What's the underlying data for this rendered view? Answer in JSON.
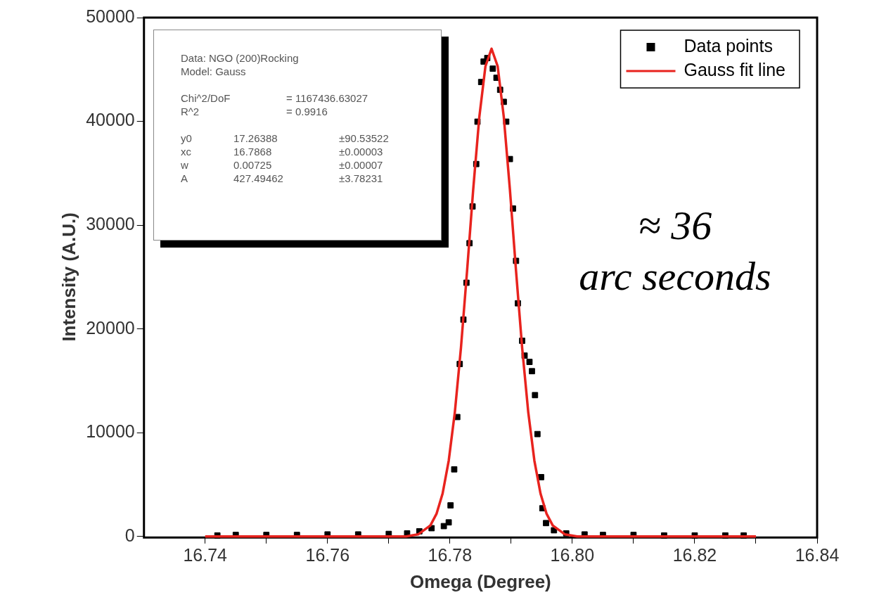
{
  "chart_data": {
    "type": "scatter",
    "xlabel": "Omega (Degree)",
    "ylabel": "Intensity (A.U.)",
    "xlim": [
      16.73,
      16.84
    ],
    "xticks": [
      16.74,
      {
        "value": 16.75,
        "label": null
      },
      16.76,
      {
        "value": 16.77,
        "label": null
      },
      16.78,
      {
        "value": 16.79,
        "label": null
      },
      {
        "value": 16.8,
        "label": "16.80"
      },
      {
        "value": 16.81,
        "label": null
      },
      16.82,
      {
        "value": 16.83,
        "label": null
      },
      16.84
    ],
    "ylim": [
      0,
      50000
    ],
    "yticks": [
      0,
      10000,
      20000,
      30000,
      40000,
      50000
    ],
    "grid": false,
    "legend": "top right",
    "series": [
      {
        "name": "Data points",
        "marker": "square",
        "color": "#000000",
        "x": [
          16.742,
          16.745,
          16.75,
          16.755,
          16.76,
          16.765,
          16.77,
          16.773,
          16.775,
          16.777,
          16.779,
          16.7798,
          16.7801,
          16.7807,
          16.7812,
          16.7816,
          16.7822,
          16.7827,
          16.7832,
          16.7837,
          16.7843,
          16.7845,
          16.7851,
          16.7855,
          16.7861,
          16.787,
          16.7876,
          16.7882,
          16.7888,
          16.7892,
          16.7898,
          16.7903,
          16.7908,
          16.7911,
          16.7918,
          16.7922,
          16.793,
          16.7934,
          16.7939,
          16.7943,
          16.7949,
          16.7951,
          16.7957,
          16.797,
          16.799,
          16.802,
          16.805,
          16.81,
          16.815,
          16.82,
          16.825,
          16.828
        ],
        "values": [
          100,
          150,
          150,
          150,
          200,
          200,
          250,
          300,
          500,
          800,
          1000,
          1360,
          3000,
          6470,
          11510,
          16620,
          20900,
          24450,
          28260,
          31800,
          35890,
          39970,
          43790,
          45760,
          46100,
          45080,
          44200,
          43040,
          41880,
          39970,
          36370,
          31600,
          26560,
          22470,
          18860,
          17430,
          16820,
          15930,
          13620,
          9870,
          5720,
          2720,
          1290,
          600,
          300,
          200,
          150,
          150,
          100,
          100,
          100,
          100
        ]
      },
      {
        "name": "Gauss fit line",
        "type": "line",
        "marker": "none",
        "line_style": "solid",
        "color": "#e8231e",
        "x": [
          16.74,
          16.7708,
          16.7728,
          16.7748,
          16.7768,
          16.7778,
          16.7788,
          16.7798,
          16.7808,
          16.7818,
          16.7828,
          16.7838,
          16.7848,
          16.7858,
          16.7868,
          16.7878,
          16.7888,
          16.7898,
          16.7908,
          16.7918,
          16.7928,
          16.7938,
          16.7948,
          16.7958,
          16.7968,
          16.7988,
          16.8008,
          16.8028,
          16.83
        ],
        "values": [
          0,
          0,
          0,
          200,
          1060,
          2180,
          4140,
          7300,
          11960,
          18180,
          25600,
          33420,
          40420,
          45310,
          47000,
          45310,
          40420,
          33420,
          25600,
          18180,
          11960,
          7300,
          4140,
          2180,
          1060,
          200,
          0,
          0,
          0
        ]
      }
    ],
    "annotations": [
      "Data: NGO (200)Rocking",
      "Model: Gauss",
      "Chi^2/DoF",
      "= 1167436.63027",
      "R^2",
      "=  0.9916",
      "y0",
      "17.26388",
      "±90.53522",
      "xc",
      "16.7868",
      "±0.00003",
      "w",
      "0.00725",
      "±0.00007",
      "A",
      "427.49462",
      "±3.78231",
      "≈ 36",
      "arc seconds"
    ]
  }
}
